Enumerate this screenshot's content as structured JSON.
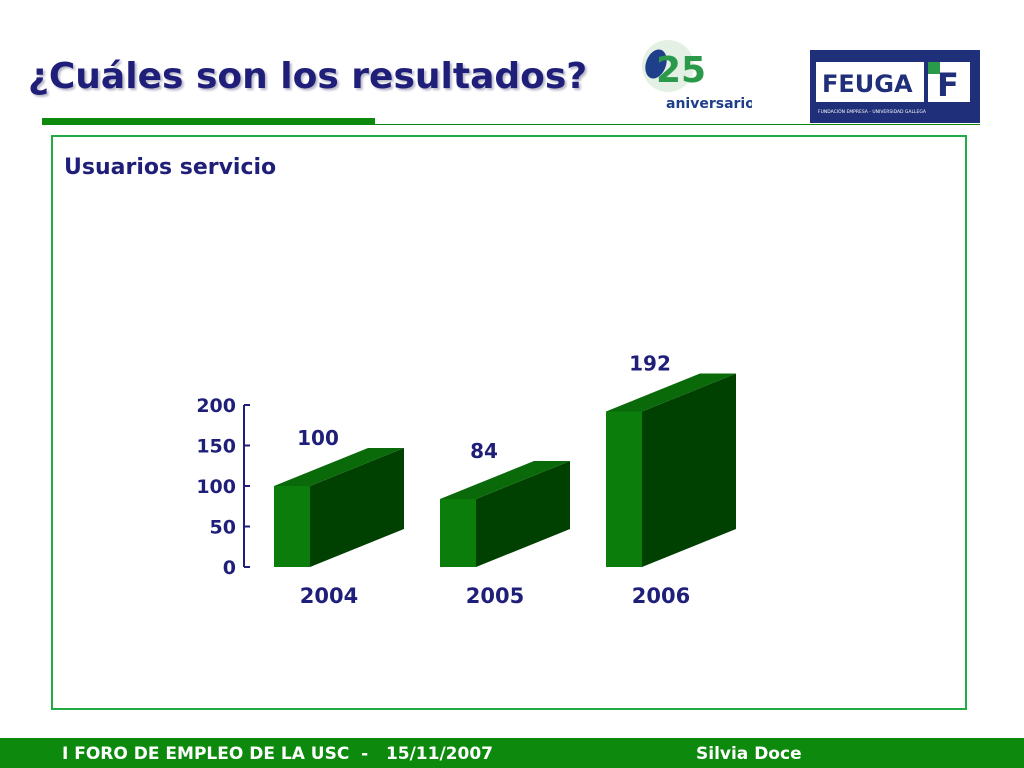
{
  "slide": {
    "title": "¿Cuáles son los resultados?",
    "subtitle": "Usuarios servicio"
  },
  "logos": {
    "anniversary": {
      "number": "25",
      "text": "aniversario"
    },
    "feuga": {
      "name": "FEUGA",
      "mark": "F",
      "tagline": "FUNDACIÓN EMPRESA - UNIVERSIDAD GALLEGA"
    }
  },
  "footer": {
    "left": "I FORO DE EMPLEO DE LA USC  -   15/11/2007",
    "right": "Silvia Doce"
  },
  "colors": {
    "title": "#1f1f7a",
    "accent_green": "#0d8a0d",
    "bar_front": "#0a7d0a",
    "bar_side": "#004000",
    "bar_top": "#0a6a0a",
    "panel_border": "#22aa44",
    "label": "#1f1f7a"
  },
  "chart_data": {
    "type": "bar",
    "style": "3d",
    "categories": [
      "2004",
      "2005",
      "2006"
    ],
    "values": [
      100,
      84,
      192
    ],
    "data_labels": [
      "100",
      "84",
      "192"
    ],
    "yticks": [
      "0",
      "50",
      "100",
      "150",
      "200"
    ],
    "ylim": [
      0,
      200
    ],
    "grid": false,
    "legend": "none"
  }
}
